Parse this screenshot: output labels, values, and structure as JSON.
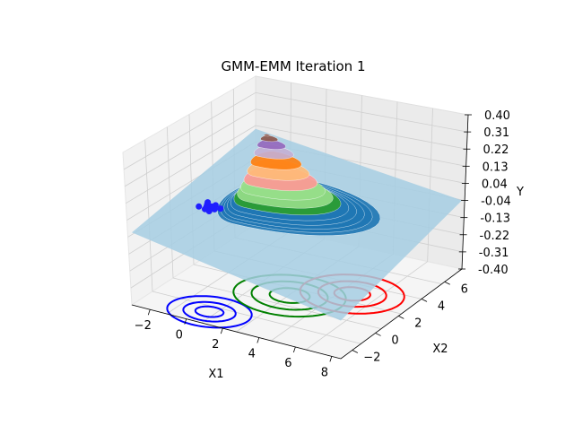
{
  "chart_data": {
    "type": "surface3d",
    "title": "GMM-EMM Iteration 1",
    "xlabel": "X1",
    "ylabel": "X2",
    "zlabel": "Y",
    "xlim": [
      -3,
      8.5
    ],
    "ylim": [
      -3,
      7.5
    ],
    "zlim": [
      -0.4,
      0.4
    ],
    "x_ticks": [
      "−2",
      "0",
      "2",
      "4",
      "6",
      "8"
    ],
    "y_ticks": [
      "−2",
      "0",
      "2",
      "4",
      "6"
    ],
    "z_ticks": [
      "-0.40",
      "-0.31",
      "-0.22",
      "-0.13",
      "-0.04",
      "0.04",
      "0.13",
      "0.22",
      "0.31",
      "0.40"
    ],
    "grid": true,
    "colors": {
      "surface_base": "#a6cee3",
      "contour_blue": "#0000ff",
      "contour_green": "#008000",
      "contour_red": "#ff0000",
      "points": "#1f1fff"
    },
    "contours": [
      {
        "color": "blue",
        "center": [
          0.5,
          -1.8
        ],
        "radii": [
          0.7,
          1.3,
          2.1
        ]
      },
      {
        "color": "green",
        "center": [
          2.8,
          1.5
        ],
        "radii": [
          1.0,
          1.9,
          2.8
        ]
      },
      {
        "color": "red",
        "center": [
          5.3,
          3.0
        ],
        "radii": [
          0.9,
          1.7,
          2.6
        ]
      }
    ],
    "peak": {
      "x": 0.5,
      "y": 3.0,
      "z": 0.33
    },
    "points": [
      [
        -1.6,
        1.2
      ],
      [
        -1.3,
        1.5
      ],
      [
        -1.9,
        1.0
      ],
      [
        -1.5,
        0.9
      ],
      [
        -1.1,
        1.1
      ],
      [
        -1.4,
        1.3
      ],
      [
        -1.7,
        1.4
      ],
      [
        -1.2,
        0.8
      ],
      [
        -0.9,
        1.3
      ],
      [
        -1.8,
        1.6
      ]
    ]
  }
}
